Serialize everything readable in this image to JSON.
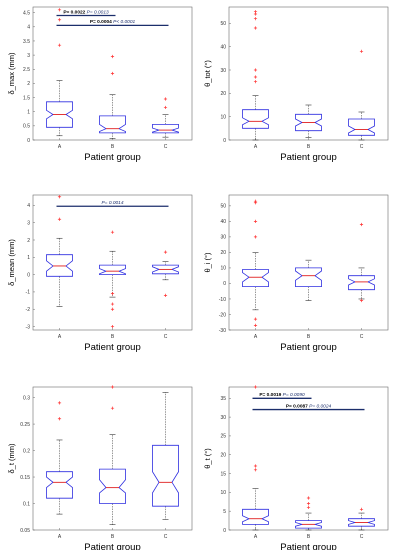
{
  "chart_data": [
    {
      "type": "box",
      "ylabel": "δ_max (mm)",
      "xlabel": "Patient group",
      "categories": [
        "A",
        "B",
        "C"
      ],
      "ylim": [
        0,
        4.7
      ],
      "yticks": [
        "0",
        "0.5",
        "1",
        "1.5",
        "2",
        "2.5",
        "3",
        "3.5",
        "4",
        "4.5"
      ],
      "boxes": [
        {
          "group": "A",
          "min": 0.15,
          "q1": 0.45,
          "median": 0.9,
          "q3": 1.35,
          "max": 2.1,
          "notch_low": 0.75,
          "notch_high": 1.05,
          "outliers": [
            3.35,
            4.25,
            4.6
          ]
        },
        {
          "group": "B",
          "min": 0.05,
          "q1": 0.25,
          "median": 0.4,
          "q3": 0.85,
          "max": 1.6,
          "notch_low": 0.3,
          "notch_high": 0.55,
          "outliers": [
            2.35,
            2.95
          ]
        },
        {
          "group": "C",
          "min": 0.1,
          "q1": 0.25,
          "median": 0.35,
          "q3": 0.55,
          "max": 0.9,
          "notch_low": 0.28,
          "notch_high": 0.42,
          "outliers": [
            1.15,
            1.45
          ]
        }
      ],
      "annotations": [
        {
          "from": "A",
          "to": "B",
          "y": 4.4,
          "p_bold": "P= 0.0022",
          "p_italic": "P= 0.0013"
        },
        {
          "from": "A",
          "to": "C",
          "y": 4.05,
          "p_bold": "P= 0.0004",
          "p_italic": "P< 0.0001"
        }
      ]
    },
    {
      "type": "box",
      "ylabel": "θ_tot (°)",
      "xlabel": "Patient group",
      "categories": [
        "A",
        "B",
        "C"
      ],
      "ylim": [
        0,
        57
      ],
      "yticks": [
        "0",
        "10",
        "20",
        "30",
        "40",
        "50"
      ],
      "boxes": [
        {
          "group": "A",
          "min": 0,
          "q1": 5,
          "median": 8,
          "q3": 13,
          "max": 19,
          "notch_low": 6.5,
          "notch_high": 9.5,
          "outliers": [
            25,
            27,
            30,
            48,
            52,
            54,
            55
          ]
        },
        {
          "group": "B",
          "min": 1,
          "q1": 4,
          "median": 7.5,
          "q3": 11,
          "max": 15,
          "notch_low": 6,
          "notch_high": 9,
          "outliers": []
        },
        {
          "group": "C",
          "min": 0,
          "q1": 2,
          "median": 4.5,
          "q3": 9,
          "max": 12,
          "notch_low": 3,
          "notch_high": 6,
          "outliers": [
            38
          ]
        }
      ],
      "annotations": []
    },
    {
      "type": "box",
      "ylabel": "δ_mean (mm)",
      "xlabel": "Patient group",
      "categories": [
        "A",
        "B",
        "C"
      ],
      "ylim": [
        -3.2,
        4.6
      ],
      "yticks": [
        "-3",
        "-2",
        "-1",
        "0",
        "1",
        "2",
        "3",
        "4"
      ],
      "boxes": [
        {
          "group": "A",
          "min": -1.85,
          "q1": -0.1,
          "median": 0.5,
          "q3": 1.15,
          "max": 2.1,
          "notch_low": 0.2,
          "notch_high": 0.8,
          "outliers": [
            3.2,
            4.5
          ]
        },
        {
          "group": "B",
          "min": -1.3,
          "q1": 0.0,
          "median": 0.2,
          "q3": 0.55,
          "max": 1.35,
          "notch_low": 0.05,
          "notch_high": 0.35,
          "outliers": [
            -2.0,
            -1.7,
            -1.1,
            -3.0,
            2.45
          ]
        },
        {
          "group": "C",
          "min": -0.3,
          "q1": 0.05,
          "median": 0.3,
          "q3": 0.55,
          "max": 0.75,
          "notch_low": 0.15,
          "notch_high": 0.45,
          "outliers": [
            1.3,
            -1.2
          ]
        }
      ],
      "annotations": [
        {
          "from": "A",
          "to": "C",
          "y": 3.95,
          "p_bold": "",
          "p_italic": "P= 0.0014"
        }
      ]
    },
    {
      "type": "box",
      "ylabel": "θ_i (°)",
      "xlabel": "Patient group",
      "categories": [
        "A",
        "B",
        "C"
      ],
      "ylim": [
        -30,
        57
      ],
      "yticks": [
        "-30",
        "-20",
        "-10",
        "0",
        "10",
        "20",
        "30",
        "40",
        "50"
      ],
      "boxes": [
        {
          "group": "A",
          "min": -17,
          "q1": -2,
          "median": 4,
          "q3": 9,
          "max": 20,
          "notch_low": 1,
          "notch_high": 7,
          "outliers": [
            -27,
            -23,
            30,
            40,
            52,
            53
          ]
        },
        {
          "group": "B",
          "min": -11,
          "q1": -2,
          "median": 5,
          "q3": 10,
          "max": 15,
          "notch_low": 2,
          "notch_high": 8,
          "outliers": []
        },
        {
          "group": "C",
          "min": -10,
          "q1": -4,
          "median": 1,
          "q3": 5,
          "max": 10,
          "notch_low": -1,
          "notch_high": 3,
          "outliers": [
            38,
            -11
          ]
        }
      ],
      "annotations": []
    },
    {
      "type": "box",
      "ylabel": "δ_t (mm)",
      "xlabel": "Patient group",
      "categories": [
        "A",
        "B",
        "C"
      ],
      "ylim": [
        0.05,
        0.32
      ],
      "yticks": [
        "0.05",
        "0.1",
        "0.15",
        "0.2",
        "0.25",
        "0.3"
      ],
      "boxes": [
        {
          "group": "A",
          "min": 0.08,
          "q1": 0.11,
          "median": 0.14,
          "q3": 0.16,
          "max": 0.22,
          "notch_low": 0.13,
          "notch_high": 0.15,
          "outliers": [
            0.26,
            0.29
          ]
        },
        {
          "group": "B",
          "min": 0.06,
          "q1": 0.1,
          "median": 0.13,
          "q3": 0.165,
          "max": 0.23,
          "notch_low": 0.12,
          "notch_high": 0.145,
          "outliers": [
            0.28,
            0.32
          ]
        },
        {
          "group": "C",
          "min": 0.07,
          "q1": 0.095,
          "median": 0.14,
          "q3": 0.21,
          "max": 0.31,
          "notch_low": 0.12,
          "notch_high": 0.16,
          "outliers": []
        }
      ],
      "annotations": []
    },
    {
      "type": "box",
      "ylabel": "θ_t (°)",
      "xlabel": "Patient group",
      "categories": [
        "A",
        "B",
        "C"
      ],
      "ylim": [
        0,
        38
      ],
      "yticks": [
        "0",
        "5",
        "10",
        "15",
        "20",
        "25",
        "30",
        "35"
      ],
      "boxes": [
        {
          "group": "A",
          "min": 0,
          "q1": 1.5,
          "median": 3,
          "q3": 5.5,
          "max": 11,
          "notch_low": 2.2,
          "notch_high": 3.8,
          "outliers": [
            16,
            17,
            38
          ]
        },
        {
          "group": "B",
          "min": 0,
          "q1": 0.5,
          "median": 1.5,
          "q3": 2.5,
          "max": 4.5,
          "notch_low": 1.0,
          "notch_high": 2.0,
          "outliers": [
            6,
            7,
            8.5
          ]
        },
        {
          "group": "C",
          "min": 0,
          "q1": 1.0,
          "median": 2,
          "q3": 3,
          "max": 4.5,
          "notch_low": 1.5,
          "notch_high": 2.5,
          "outliers": [
            5.5
          ]
        }
      ],
      "annotations": [
        {
          "from": "A",
          "to": "B",
          "y": 35,
          "p_bold": "P= 0.0019",
          "p_italic": "P= 0.0090"
        },
        {
          "from": "A",
          "to": "C",
          "y": 32,
          "p_bold": "P= 0.0087",
          "p_italic": "P= 0.0024"
        }
      ]
    }
  ],
  "colors": {
    "box": "#2e2ee0",
    "median": "#e02020",
    "outlier": "#ff3030",
    "annotation_line": "#1b2e6b",
    "axis": "#6a6a6a",
    "whisker": "#333333"
  }
}
